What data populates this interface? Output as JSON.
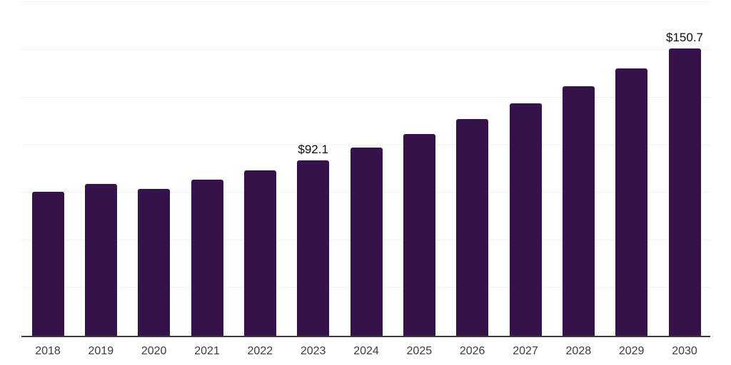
{
  "chart_data": {
    "type": "bar",
    "title": "",
    "xlabel": "",
    "ylabel": "",
    "categories": [
      "2018",
      "2019",
      "2020",
      "2021",
      "2022",
      "2023",
      "2024",
      "2025",
      "2026",
      "2027",
      "2028",
      "2029",
      "2030"
    ],
    "values": [
      75.5,
      79.6,
      77.0,
      81.8,
      86.7,
      92.1,
      98.8,
      106.0,
      113.7,
      122.0,
      130.9,
      140.4,
      150.7
    ],
    "data_labels": {
      "2023": "$92.1",
      "2030": "$150.7"
    },
    "ylim": [
      0,
      175
    ],
    "gridline_step": 25,
    "grid": true,
    "legend": false,
    "y_axis_labels_visible": false,
    "colors": {
      "bar": "#36124B",
      "gridline": "#f2f2f2",
      "axis_line": "#3b3b3b",
      "tick_label": "#3c3c3c",
      "data_label": "#0a0a0a",
      "background": "#ffffff"
    }
  }
}
